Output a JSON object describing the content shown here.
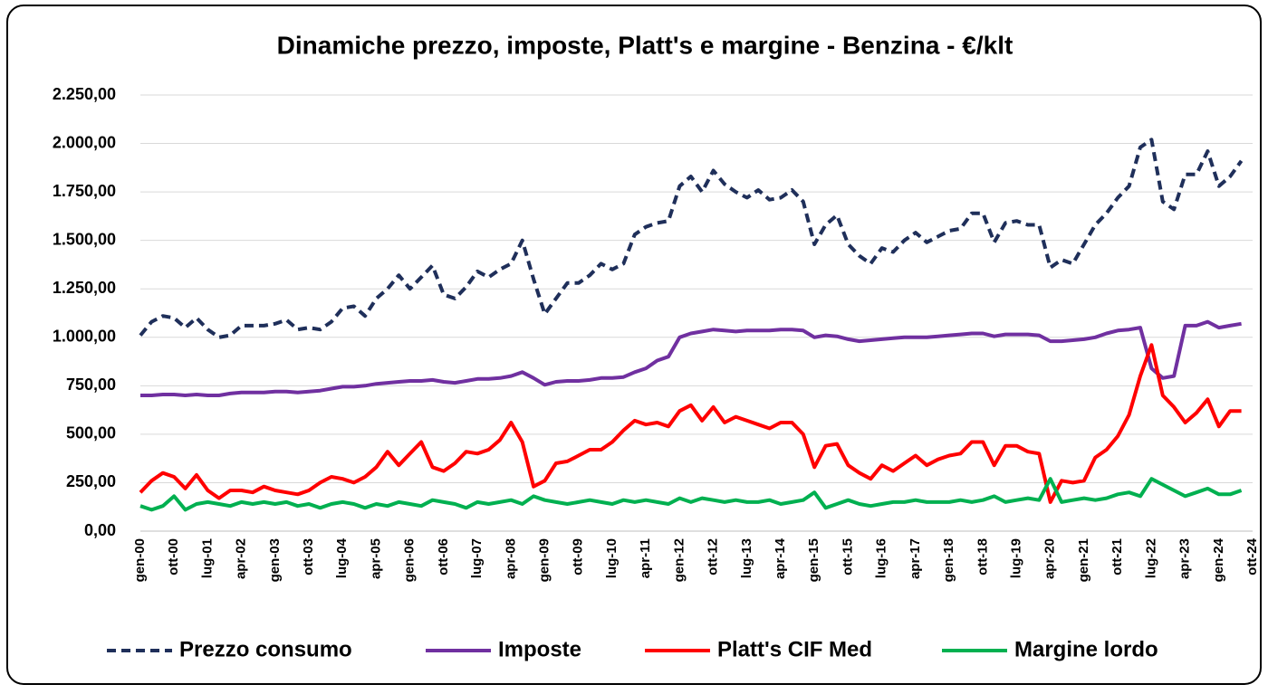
{
  "chart_data": {
    "type": "line",
    "title": "Dinamiche prezzo, imposte, Platt's e margine - Benzina - €/klt",
    "categories": [
      "gen-00",
      null,
      null,
      "ott-00",
      null,
      null,
      "lug-01",
      null,
      null,
      "apr-02",
      null,
      null,
      "gen-03",
      null,
      null,
      "ott-03",
      null,
      null,
      "lug-04",
      null,
      null,
      "apr-05",
      null,
      null,
      "gen-06",
      null,
      null,
      "ott-06",
      null,
      null,
      "lug-07",
      null,
      null,
      "apr-08",
      null,
      null,
      "gen-09",
      null,
      null,
      "ott-09",
      null,
      null,
      "lug-10",
      null,
      null,
      "apr-11",
      null,
      null,
      "gen-12",
      null,
      null,
      "ott-12",
      null,
      null,
      "lug-13",
      null,
      null,
      "apr-14",
      null,
      null,
      "gen-15",
      null,
      null,
      "ott-15",
      null,
      null,
      "lug-16",
      null,
      null,
      "apr-17",
      null,
      null,
      "gen-18",
      null,
      null,
      "ott-18",
      null,
      null,
      "lug-19",
      null,
      null,
      "apr-20",
      null,
      null,
      "gen-21",
      null,
      null,
      "ott-21",
      null,
      null,
      "lug-22",
      null,
      null,
      "apr-23",
      null,
      null,
      "gen-24",
      null,
      null,
      "ott-24"
    ],
    "series": [
      {
        "name": "Prezzo consumo",
        "color": "#1f2f5a",
        "line_style": "dashed",
        "values": [
          1010,
          1080,
          1110,
          1100,
          1050,
          1100,
          1040,
          1000,
          1010,
          1060,
          1060,
          1060,
          1070,
          1090,
          1040,
          1050,
          1040,
          1080,
          1150,
          1160,
          1110,
          1200,
          1250,
          1320,
          1250,
          1310,
          1370,
          1220,
          1200,
          1260,
          1340,
          1310,
          1350,
          1380,
          1500,
          1300,
          1120,
          1200,
          1280,
          1280,
          1320,
          1380,
          1350,
          1380,
          1530,
          1570,
          1590,
          1600,
          1780,
          1830,
          1750,
          1860,
          1790,
          1750,
          1720,
          1760,
          1710,
          1720,
          1760,
          1700,
          1480,
          1580,
          1630,
          1480,
          1420,
          1380,
          1460,
          1440,
          1500,
          1540,
          1490,
          1520,
          1550,
          1560,
          1640,
          1640,
          1490,
          1590,
          1600,
          1580,
          1580,
          1360,
          1400,
          1380,
          1480,
          1580,
          1640,
          1720,
          1780,
          1980,
          2020,
          1700,
          1660,
          1840,
          1840,
          1960,
          1780,
          1830,
          1910,
          null
        ]
      },
      {
        "name": "Imposte",
        "color": "#7030a0",
        "line_style": "solid",
        "values": [
          700,
          700,
          705,
          705,
          700,
          705,
          700,
          700,
          710,
          715,
          715,
          715,
          720,
          720,
          715,
          720,
          725,
          735,
          745,
          745,
          750,
          760,
          765,
          770,
          775,
          775,
          780,
          770,
          765,
          775,
          785,
          785,
          790,
          800,
          820,
          790,
          755,
          770,
          775,
          775,
          780,
          790,
          790,
          795,
          820,
          840,
          880,
          900,
          1000,
          1020,
          1030,
          1040,
          1035,
          1030,
          1035,
          1035,
          1035,
          1040,
          1040,
          1035,
          1000,
          1010,
          1005,
          990,
          980,
          985,
          990,
          995,
          1000,
          1000,
          1000,
          1005,
          1010,
          1015,
          1020,
          1020,
          1005,
          1015,
          1015,
          1015,
          1010,
          980,
          980,
          985,
          990,
          1000,
          1020,
          1035,
          1040,
          1050,
          840,
          790,
          800,
          1060,
          1060,
          1080,
          1050,
          1060,
          1070,
          null
        ]
      },
      {
        "name": "Platt's CIF Med",
        "color": "#ff0000",
        "line_style": "solid",
        "values": [
          200,
          260,
          300,
          280,
          220,
          290,
          210,
          170,
          210,
          210,
          200,
          230,
          210,
          200,
          190,
          210,
          250,
          280,
          270,
          250,
          280,
          330,
          410,
          340,
          400,
          460,
          330,
          310,
          350,
          410,
          400,
          420,
          470,
          560,
          460,
          230,
          260,
          350,
          360,
          390,
          420,
          420,
          460,
          520,
          570,
          550,
          560,
          540,
          620,
          650,
          570,
          640,
          560,
          590,
          570,
          550,
          530,
          560,
          560,
          500,
          330,
          440,
          450,
          340,
          300,
          270,
          340,
          310,
          350,
          390,
          340,
          370,
          390,
          400,
          460,
          460,
          340,
          440,
          440,
          410,
          400,
          150,
          260,
          250,
          260,
          380,
          420,
          490,
          600,
          800,
          960,
          700,
          640,
          560,
          610,
          680,
          540,
          620,
          620,
          null
        ]
      },
      {
        "name": "Margine lordo",
        "color": "#00b050",
        "line_style": "solid",
        "values": [
          130,
          110,
          130,
          180,
          110,
          140,
          150,
          140,
          130,
          150,
          140,
          150,
          140,
          150,
          130,
          140,
          120,
          140,
          150,
          140,
          120,
          140,
          130,
          150,
          140,
          130,
          160,
          150,
          140,
          120,
          150,
          140,
          150,
          160,
          140,
          180,
          160,
          150,
          140,
          150,
          160,
          150,
          140,
          160,
          150,
          160,
          150,
          140,
          170,
          150,
          170,
          160,
          150,
          160,
          150,
          150,
          160,
          140,
          150,
          160,
          200,
          120,
          140,
          160,
          140,
          130,
          140,
          150,
          150,
          160,
          150,
          150,
          150,
          160,
          150,
          160,
          180,
          150,
          160,
          170,
          160,
          270,
          150,
          160,
          170,
          160,
          170,
          190,
          200,
          180,
          270,
          240,
          210,
          180,
          200,
          220,
          190,
          190,
          210,
          null
        ]
      }
    ],
    "ylim": [
      0,
      2250
    ],
    "yticks": [
      {
        "value": 0,
        "label": "0,00"
      },
      {
        "value": 250,
        "label": "250,00"
      },
      {
        "value": 500,
        "label": "500,00"
      },
      {
        "value": 750,
        "label": "750,00"
      },
      {
        "value": 1000,
        "label": "1.000,00"
      },
      {
        "value": 1250,
        "label": "1.250,00"
      },
      {
        "value": 1500,
        "label": "1.500,00"
      },
      {
        "value": 1750,
        "label": "1.750,00"
      },
      {
        "value": 2000,
        "label": "2.000,00"
      },
      {
        "value": 2250,
        "label": "2.250,00"
      }
    ],
    "grid": true,
    "legend": "bottom"
  }
}
